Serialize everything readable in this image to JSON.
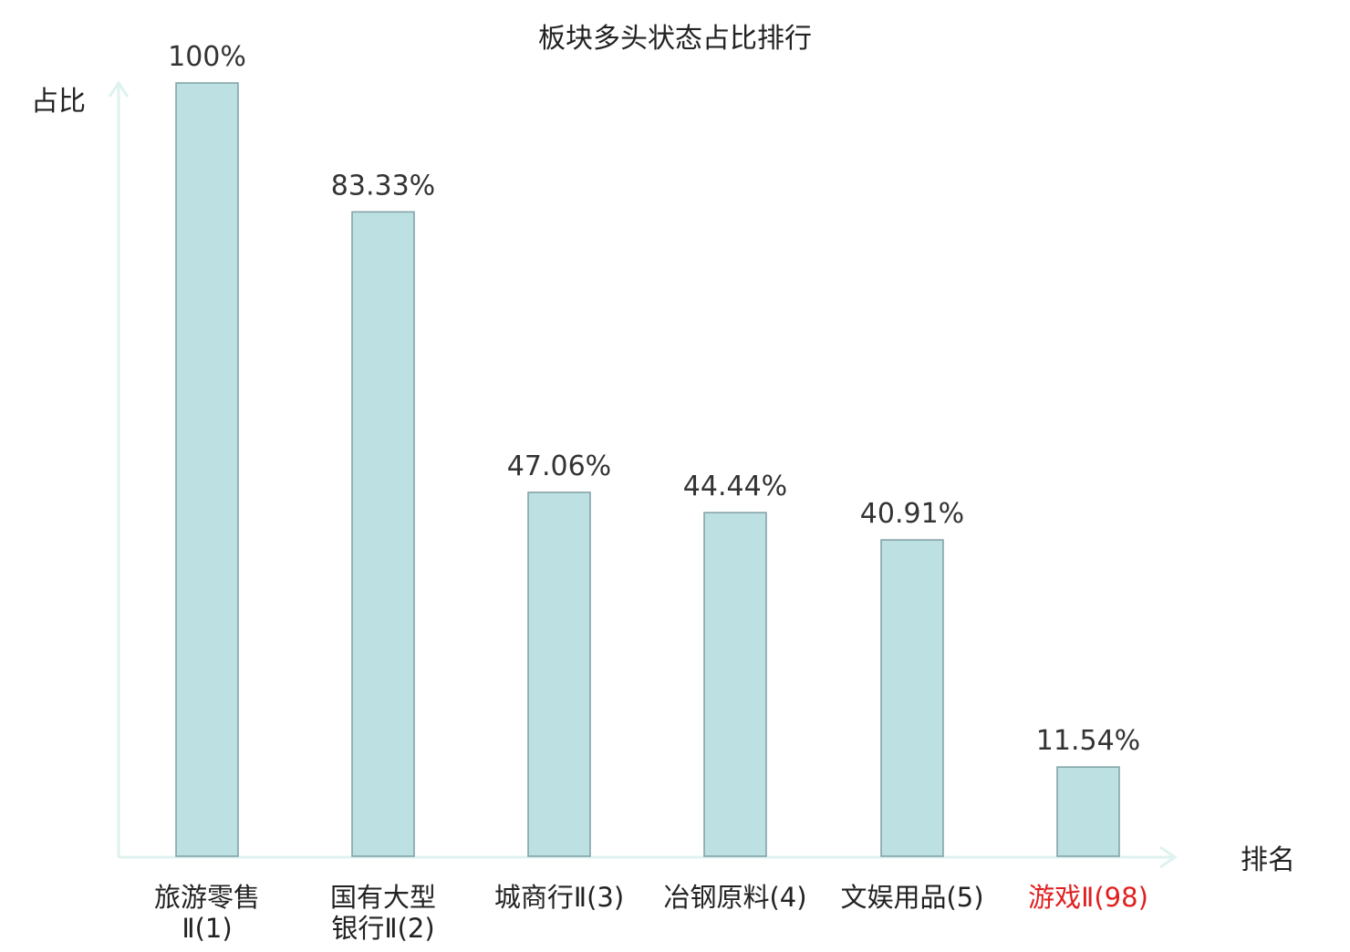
{
  "chart_data": {
    "type": "bar",
    "title": "板块多头状态占比排行",
    "ylabel": "占比",
    "xlabel": "排名",
    "categories": [
      [
        "旅游零售",
        "Ⅱ(1)"
      ],
      [
        "国有大型",
        "银行Ⅱ(2)"
      ],
      [
        "城商行Ⅱ(3)"
      ],
      [
        "冶钢原料(4)"
      ],
      [
        "文娱用品(5)"
      ],
      [
        "游戏Ⅱ(98)"
      ]
    ],
    "values": [
      100,
      83.33,
      47.06,
      44.44,
      40.91,
      11.54
    ],
    "value_labels": [
      "100%",
      "83.33%",
      "47.06%",
      "44.44%",
      "40.91%",
      "11.54%"
    ],
    "highlight_index": 5,
    "ylim": [
      0,
      100
    ],
    "grid": false,
    "colors": {
      "bar_fill": "#bde0e2",
      "bar_stroke": "#7f9fa2",
      "axis": "#dff2ef",
      "text": "#222222",
      "value_label": "#333333",
      "highlight": "#e02020"
    }
  }
}
